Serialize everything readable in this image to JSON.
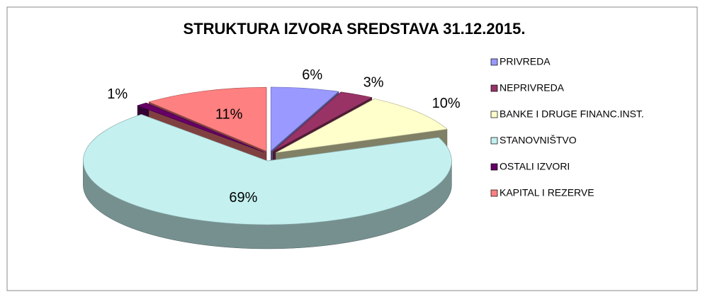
{
  "chart_data": {
    "type": "pie3d",
    "title": "STRUKTURA IZVORA  SREDSTAVA 31.12.2015.",
    "categories": [
      "PRIVREDA",
      "NEPRIVREDA",
      "BANKE I DRUGE FINANC.INST.",
      "STANOVNIŠTVO",
      "OSTALI IZVORI",
      "KAPITAL I REZERVE"
    ],
    "values": [
      6,
      3,
      10,
      69,
      1,
      11
    ],
    "value_labels": [
      "6%",
      "3%",
      "10%",
      "69%",
      "1%",
      "11%"
    ],
    "colors": [
      "#9999ff",
      "#993366",
      "#ffffcc",
      "#c4f0f0",
      "#660066",
      "#ff8080"
    ],
    "legend": "right"
  }
}
